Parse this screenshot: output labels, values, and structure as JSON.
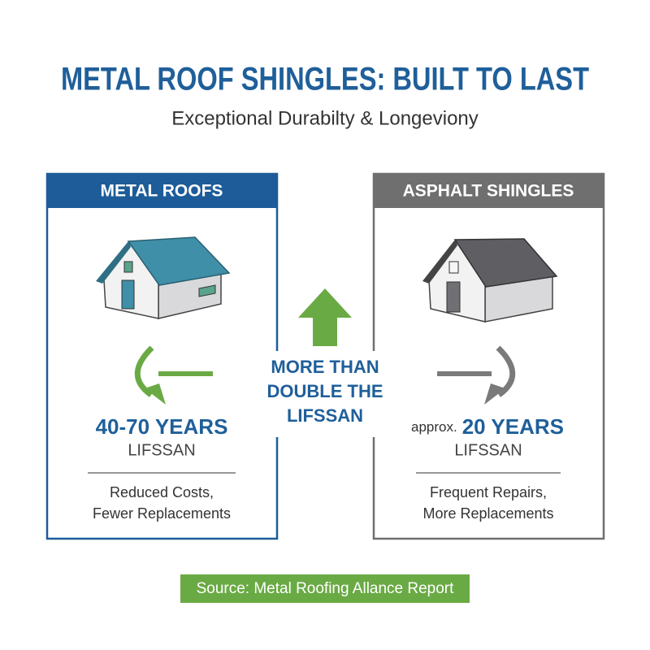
{
  "header": {
    "title": "METAL ROOF SHINGLES: BUILT TO LAST",
    "subtitle": "Exceptional Durabilty & Longeviony"
  },
  "panels": [
    {
      "heading": "METAL ROOFS",
      "years": "40-70 YEARS",
      "lifespan": "LIFSSAN",
      "notes": [
        "Reduced Costs,",
        "Fewer Replacements"
      ]
    },
    {
      "heading": "ASPHALT SHINGLES",
      "prefix": "approx.",
      "years": "20 YEARS",
      "lifespan": "LIFSSAN",
      "notes": [
        "Frequent Repairs,",
        "More Replacements"
      ]
    }
  ],
  "comparison": {
    "lines": [
      "MORE THAN",
      "DOUBLE THE",
      "LIFSSAN"
    ]
  },
  "source": "Source: Metal Roofing Allance Report"
}
